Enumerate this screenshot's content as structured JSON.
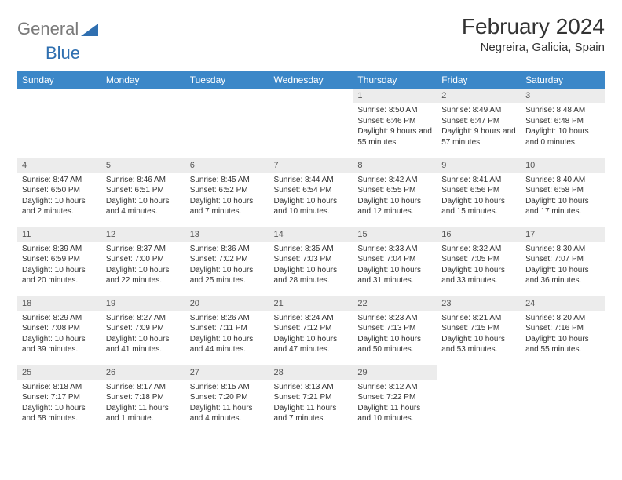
{
  "logo": {
    "gray": "General",
    "blue": "Blue"
  },
  "title": "February 2024",
  "subtitle": "Negreira, Galicia, Spain",
  "colors": {
    "header_bg": "#3b87c8",
    "header_text": "#ffffff",
    "daynum_bg": "#ececec",
    "border": "#2f6fb0",
    "logo_gray": "#7a7a7a",
    "logo_blue": "#2f6fb0"
  },
  "day_headers": [
    "Sunday",
    "Monday",
    "Tuesday",
    "Wednesday",
    "Thursday",
    "Friday",
    "Saturday"
  ],
  "weeks": [
    [
      null,
      null,
      null,
      null,
      {
        "n": "1",
        "sr": "Sunrise: 8:50 AM",
        "ss": "Sunset: 6:46 PM",
        "dl": "Daylight: 9 hours and 55 minutes."
      },
      {
        "n": "2",
        "sr": "Sunrise: 8:49 AM",
        "ss": "Sunset: 6:47 PM",
        "dl": "Daylight: 9 hours and 57 minutes."
      },
      {
        "n": "3",
        "sr": "Sunrise: 8:48 AM",
        "ss": "Sunset: 6:48 PM",
        "dl": "Daylight: 10 hours and 0 minutes."
      }
    ],
    [
      {
        "n": "4",
        "sr": "Sunrise: 8:47 AM",
        "ss": "Sunset: 6:50 PM",
        "dl": "Daylight: 10 hours and 2 minutes."
      },
      {
        "n": "5",
        "sr": "Sunrise: 8:46 AM",
        "ss": "Sunset: 6:51 PM",
        "dl": "Daylight: 10 hours and 4 minutes."
      },
      {
        "n": "6",
        "sr": "Sunrise: 8:45 AM",
        "ss": "Sunset: 6:52 PM",
        "dl": "Daylight: 10 hours and 7 minutes."
      },
      {
        "n": "7",
        "sr": "Sunrise: 8:44 AM",
        "ss": "Sunset: 6:54 PM",
        "dl": "Daylight: 10 hours and 10 minutes."
      },
      {
        "n": "8",
        "sr": "Sunrise: 8:42 AM",
        "ss": "Sunset: 6:55 PM",
        "dl": "Daylight: 10 hours and 12 minutes."
      },
      {
        "n": "9",
        "sr": "Sunrise: 8:41 AM",
        "ss": "Sunset: 6:56 PM",
        "dl": "Daylight: 10 hours and 15 minutes."
      },
      {
        "n": "10",
        "sr": "Sunrise: 8:40 AM",
        "ss": "Sunset: 6:58 PM",
        "dl": "Daylight: 10 hours and 17 minutes."
      }
    ],
    [
      {
        "n": "11",
        "sr": "Sunrise: 8:39 AM",
        "ss": "Sunset: 6:59 PM",
        "dl": "Daylight: 10 hours and 20 minutes."
      },
      {
        "n": "12",
        "sr": "Sunrise: 8:37 AM",
        "ss": "Sunset: 7:00 PM",
        "dl": "Daylight: 10 hours and 22 minutes."
      },
      {
        "n": "13",
        "sr": "Sunrise: 8:36 AM",
        "ss": "Sunset: 7:02 PM",
        "dl": "Daylight: 10 hours and 25 minutes."
      },
      {
        "n": "14",
        "sr": "Sunrise: 8:35 AM",
        "ss": "Sunset: 7:03 PM",
        "dl": "Daylight: 10 hours and 28 minutes."
      },
      {
        "n": "15",
        "sr": "Sunrise: 8:33 AM",
        "ss": "Sunset: 7:04 PM",
        "dl": "Daylight: 10 hours and 31 minutes."
      },
      {
        "n": "16",
        "sr": "Sunrise: 8:32 AM",
        "ss": "Sunset: 7:05 PM",
        "dl": "Daylight: 10 hours and 33 minutes."
      },
      {
        "n": "17",
        "sr": "Sunrise: 8:30 AM",
        "ss": "Sunset: 7:07 PM",
        "dl": "Daylight: 10 hours and 36 minutes."
      }
    ],
    [
      {
        "n": "18",
        "sr": "Sunrise: 8:29 AM",
        "ss": "Sunset: 7:08 PM",
        "dl": "Daylight: 10 hours and 39 minutes."
      },
      {
        "n": "19",
        "sr": "Sunrise: 8:27 AM",
        "ss": "Sunset: 7:09 PM",
        "dl": "Daylight: 10 hours and 41 minutes."
      },
      {
        "n": "20",
        "sr": "Sunrise: 8:26 AM",
        "ss": "Sunset: 7:11 PM",
        "dl": "Daylight: 10 hours and 44 minutes."
      },
      {
        "n": "21",
        "sr": "Sunrise: 8:24 AM",
        "ss": "Sunset: 7:12 PM",
        "dl": "Daylight: 10 hours and 47 minutes."
      },
      {
        "n": "22",
        "sr": "Sunrise: 8:23 AM",
        "ss": "Sunset: 7:13 PM",
        "dl": "Daylight: 10 hours and 50 minutes."
      },
      {
        "n": "23",
        "sr": "Sunrise: 8:21 AM",
        "ss": "Sunset: 7:15 PM",
        "dl": "Daylight: 10 hours and 53 minutes."
      },
      {
        "n": "24",
        "sr": "Sunrise: 8:20 AM",
        "ss": "Sunset: 7:16 PM",
        "dl": "Daylight: 10 hours and 55 minutes."
      }
    ],
    [
      {
        "n": "25",
        "sr": "Sunrise: 8:18 AM",
        "ss": "Sunset: 7:17 PM",
        "dl": "Daylight: 10 hours and 58 minutes."
      },
      {
        "n": "26",
        "sr": "Sunrise: 8:17 AM",
        "ss": "Sunset: 7:18 PM",
        "dl": "Daylight: 11 hours and 1 minute."
      },
      {
        "n": "27",
        "sr": "Sunrise: 8:15 AM",
        "ss": "Sunset: 7:20 PM",
        "dl": "Daylight: 11 hours and 4 minutes."
      },
      {
        "n": "28",
        "sr": "Sunrise: 8:13 AM",
        "ss": "Sunset: 7:21 PM",
        "dl": "Daylight: 11 hours and 7 minutes."
      },
      {
        "n": "29",
        "sr": "Sunrise: 8:12 AM",
        "ss": "Sunset: 7:22 PM",
        "dl": "Daylight: 11 hours and 10 minutes."
      },
      null,
      null
    ]
  ]
}
